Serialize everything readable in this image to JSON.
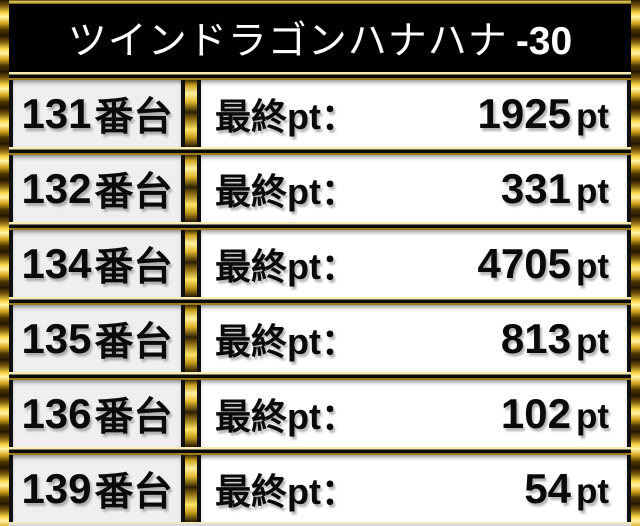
{
  "board": {
    "title_main": "ツインドラゴンハナハナ",
    "title_suffix": "-30"
  },
  "colors": {
    "gold_bright": "#ffe873",
    "gold_dark": "#3a2800",
    "header_bg": "#000000",
    "machine_cell_bg": "#efefef",
    "result_cell_bg": "#ffffff",
    "text": "#0a0a0a",
    "title_text": "#ffffff"
  },
  "rows": [
    {
      "machine_no": "131",
      "machine_suffix": "番台",
      "label": "最終pt：",
      "value": "1925",
      "unit": "pt"
    },
    {
      "machine_no": "132",
      "machine_suffix": "番台",
      "label": "最終pt：",
      "value": "331",
      "unit": "pt"
    },
    {
      "machine_no": "134",
      "machine_suffix": "番台",
      "label": "最終pt：",
      "value": "4705",
      "unit": "pt"
    },
    {
      "machine_no": "135",
      "machine_suffix": "番台",
      "label": "最終pt：",
      "value": "813",
      "unit": "pt"
    },
    {
      "machine_no": "136",
      "machine_suffix": "番台",
      "label": "最終pt：",
      "value": "102",
      "unit": "pt"
    },
    {
      "machine_no": "139",
      "machine_suffix": "番台",
      "label": "最終pt：",
      "value": "54",
      "unit": "pt"
    }
  ]
}
